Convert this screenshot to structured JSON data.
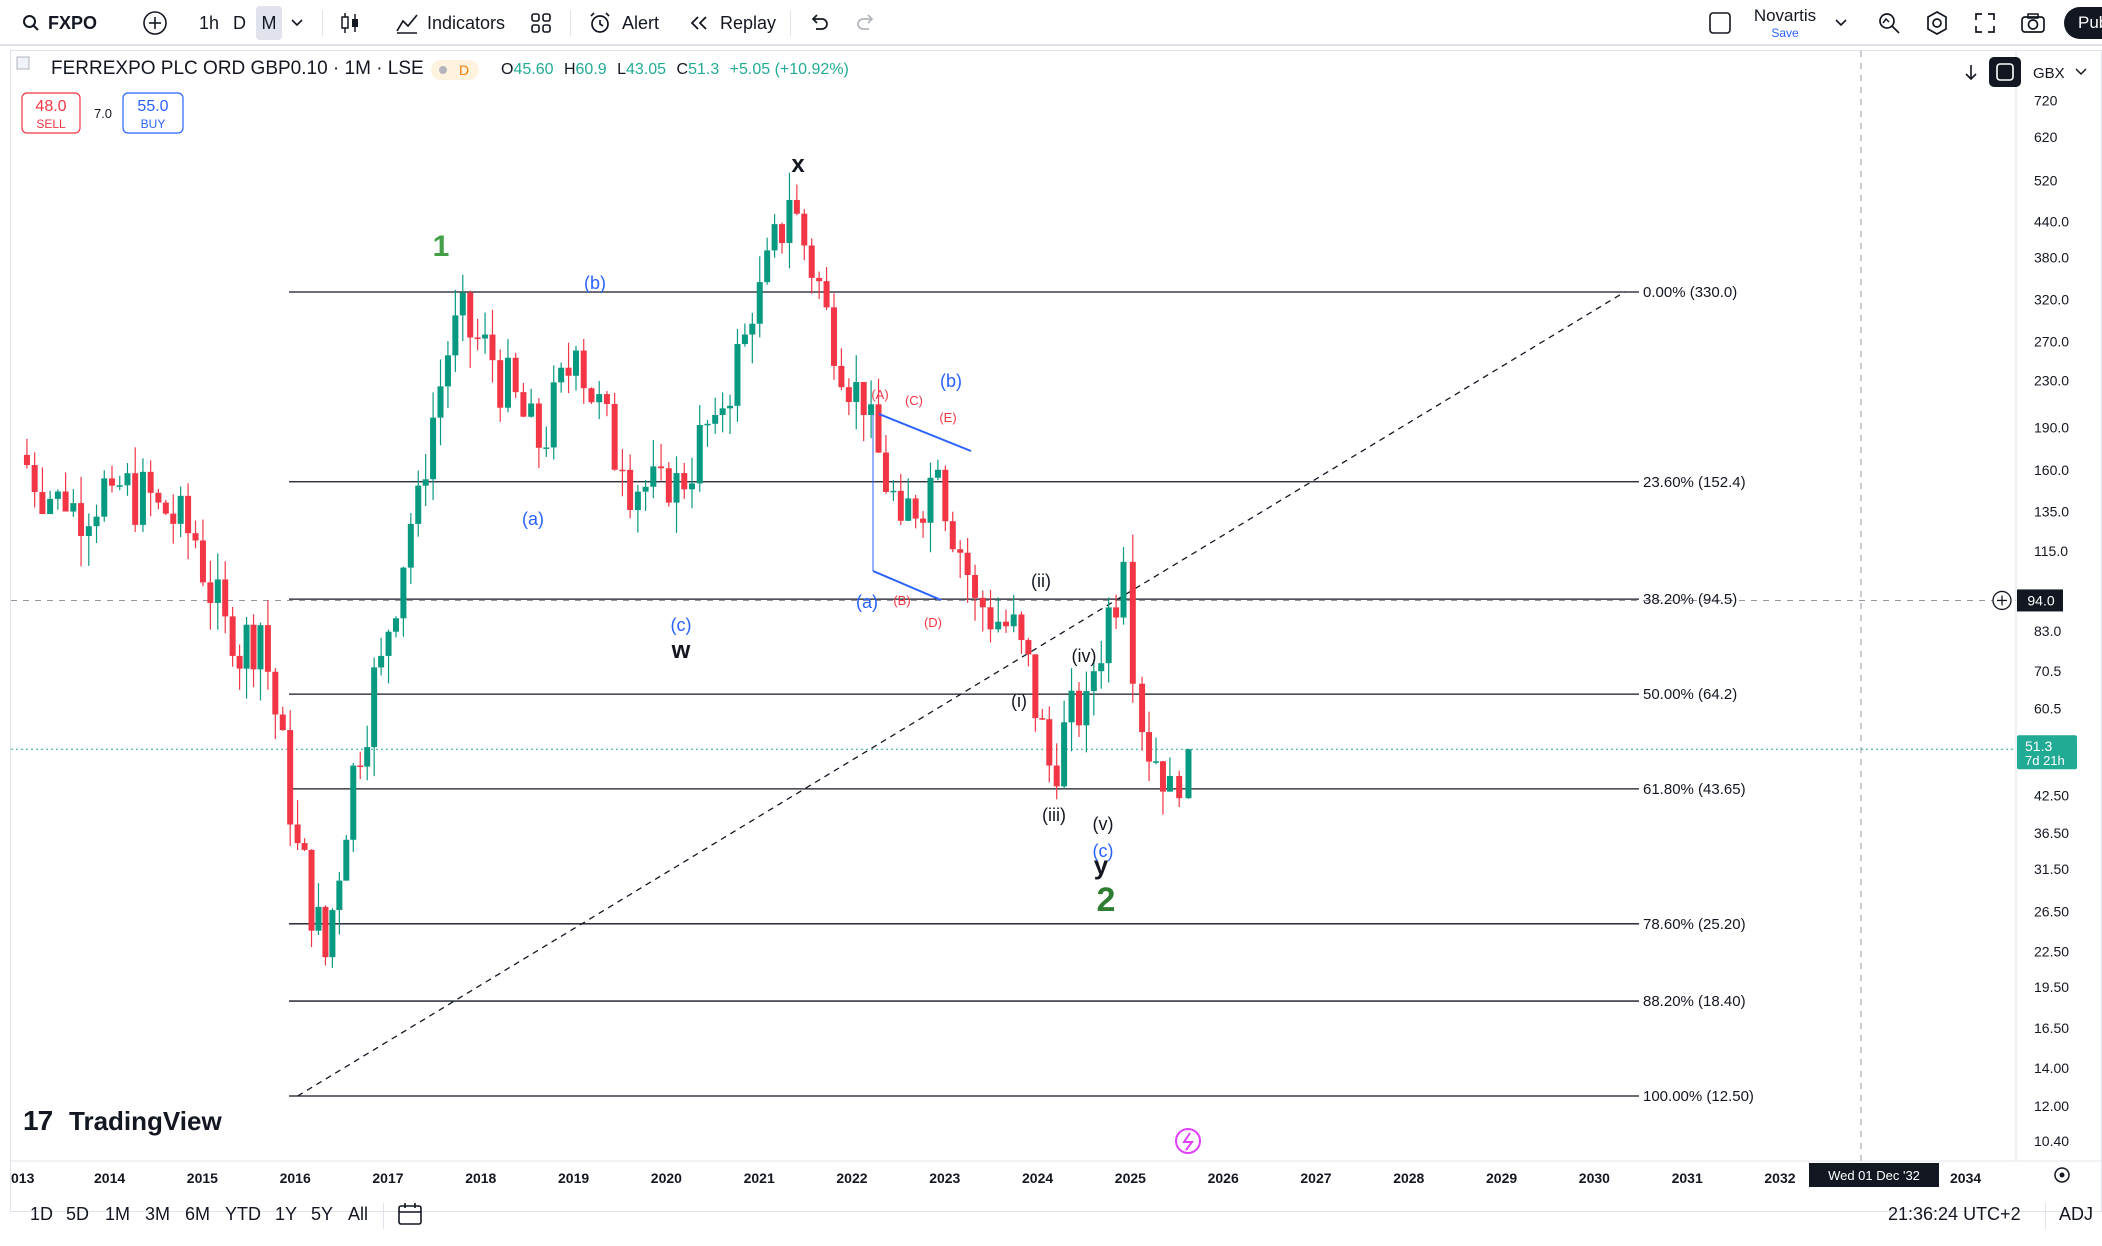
{
  "header": {
    "symbol": "FXPO",
    "intervals": [
      "1h",
      "D",
      "M"
    ],
    "active_interval": "M",
    "indicators_label": "Indicators",
    "alert_label": "Alert",
    "replay_label": "Replay",
    "layout_name": "Novartis",
    "layout_status": "Save",
    "publish_label": "Pub"
  },
  "legend": {
    "title": "FERREXPO PLC ORD GBP0.10 · 1M · LSE",
    "badge": "D",
    "o_label": "O",
    "o_val": "45.60",
    "h_label": "H",
    "h_val": "60.9",
    "l_label": "L",
    "l_val": "43.05",
    "c_label": "C",
    "c_val": "51.3",
    "change": "+5.05 (+10.92%)",
    "sell_price": "48.0",
    "sell_label": "SELL",
    "spread": "7.0",
    "buy_price": "55.0",
    "buy_label": "BUY"
  },
  "price_axis": {
    "currency": "GBX",
    "ticks": [
      "720",
      "620",
      "520",
      "440.0",
      "380.0",
      "320.0",
      "270.0",
      "230.0",
      "190.0",
      "160.0",
      "135.0",
      "115.0",
      "83.0",
      "70.5",
      "60.5",
      "42.50",
      "36.50",
      "31.50",
      "26.50",
      "22.50",
      "19.50",
      "16.50",
      "14.00",
      "12.00",
      "10.40"
    ],
    "crosshair_price": "94.0",
    "last_price": "51.3",
    "countdown": "7d 21h"
  },
  "time_axis": {
    "labels": [
      "013",
      "2014",
      "2015",
      "2016",
      "2017",
      "2018",
      "2019",
      "2020",
      "2021",
      "2022",
      "2023",
      "2024",
      "2025",
      "2026",
      "2027",
      "2028",
      "2029",
      "2030",
      "2031",
      "2032",
      "2034"
    ],
    "crosshair_date": "Wed 01 Dec '32"
  },
  "fib_levels": [
    {
      "label": "0.00% (330.0)",
      "price": 330.0
    },
    {
      "label": "23.60% (152.4)",
      "price": 152.4
    },
    {
      "label": "38.20% (94.5)",
      "price": 94.5
    },
    {
      "label": "50.00% (64.2)",
      "price": 64.2
    },
    {
      "label": "61.80% (43.65)",
      "price": 43.65
    },
    {
      "label": "78.60% (25.20)",
      "price": 25.2
    },
    {
      "label": "88.20% (18.40)",
      "price": 18.4
    },
    {
      "label": "100.00% (12.50)",
      "price": 12.5
    }
  ],
  "wave_labels": {
    "w1": "1",
    "w2": "2",
    "x": "x",
    "w": "w",
    "y": "y",
    "a1": "(a)",
    "b1": "(b)",
    "c1": "(c)",
    "b2": "(b)",
    "a2": "(a)",
    "A": "(A)",
    "B": "(B)",
    "C": "(C)",
    "D": "(D)",
    "E": "(E)",
    "i": "(i)",
    "ii": "(ii)",
    "iii": "(iii)",
    "iv": "(iv)",
    "v": "(v)",
    "c2": "(c)"
  },
  "watermark": "TradingView",
  "bottom": {
    "ranges": [
      "1D",
      "5D",
      "1M",
      "3M",
      "6M",
      "YTD",
      "1Y",
      "5Y",
      "All"
    ],
    "clock": "21:36:24 UTC+2",
    "adj": "ADJ"
  },
  "chart_data": {
    "type": "candlestick",
    "y_scale": "log",
    "ylim": [
      10.4,
      720
    ],
    "series": [
      {
        "name": "FXPO",
        "ohlc_monthly_2013_2025_approx": [
          [
            2013.0,
            150,
            175,
            140,
            170
          ],
          [
            2013.5,
            170,
            200,
            160,
            135
          ],
          [
            2014.0,
            140,
            160,
            120,
            150
          ],
          [
            2014.5,
            150,
            165,
            135,
            140
          ],
          [
            2014.9,
            140,
            145,
            110,
            120
          ],
          [
            2015.3,
            120,
            125,
            70,
            75
          ],
          [
            2015.6,
            75,
            90,
            55,
            85
          ],
          [
            2016.0,
            85,
            90,
            30,
            35
          ],
          [
            2016.3,
            35,
            45,
            14,
            22
          ],
          [
            2016.6,
            22,
            50,
            20,
            48
          ],
          [
            2016.9,
            48,
            80,
            45,
            75
          ],
          [
            2017.3,
            75,
            160,
            70,
            150
          ],
          [
            2017.7,
            150,
            330,
            140,
            300
          ],
          [
            2018.1,
            300,
            320,
            230,
            250
          ],
          [
            2018.6,
            250,
            260,
            150,
            175
          ],
          [
            2019.0,
            175,
            270,
            165,
            260
          ],
          [
            2019.5,
            260,
            290,
            150,
            160
          ],
          [
            2020.0,
            160,
            200,
            90,
            140
          ],
          [
            2020.5,
            140,
            220,
            130,
            200
          ],
          [
            2020.9,
            200,
            300,
            190,
            290
          ],
          [
            2021.3,
            290,
            520,
            280,
            480
          ],
          [
            2021.7,
            480,
            500,
            300,
            310
          ],
          [
            2022.1,
            310,
            320,
            180,
            200
          ],
          [
            2022.5,
            200,
            210,
            110,
            130
          ],
          [
            2022.9,
            130,
            180,
            100,
            160
          ],
          [
            2023.3,
            160,
            165,
            85,
            95
          ],
          [
            2023.8,
            95,
            100,
            70,
            80
          ],
          [
            2024.1,
            80,
            85,
            42,
            48
          ],
          [
            2024.5,
            48,
            75,
            40,
            65
          ],
          [
            2024.9,
            65,
            120,
            60,
            110
          ],
          [
            2025.1,
            110,
            115,
            60,
            55
          ],
          [
            2025.4,
            55,
            60,
            43,
            46
          ],
          [
            2025.6,
            45.6,
            60.9,
            43.05,
            51.3
          ]
        ]
      }
    ],
    "trendline": {
      "from": [
        2016.0,
        12.5
      ],
      "to": [
        2030.3,
        330
      ]
    }
  }
}
